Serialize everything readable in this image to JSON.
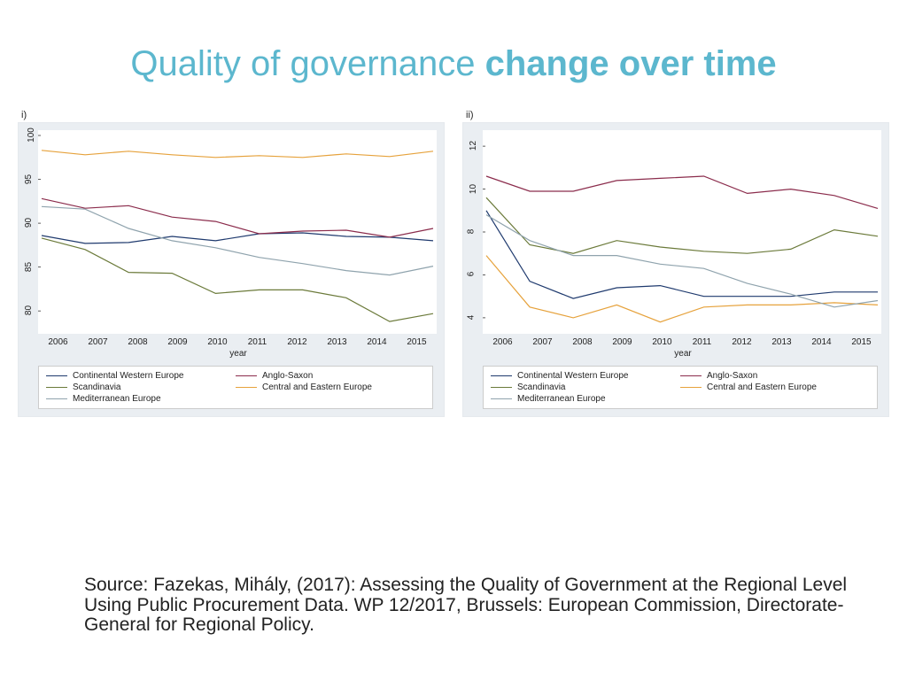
{
  "title_light": "Quality of governance ",
  "title_bold": "change over time",
  "title_color": "#5cb7ce",
  "x_label": "year",
  "years": [
    "2006",
    "2007",
    "2008",
    "2009",
    "2010",
    "2011",
    "2012",
    "2013",
    "2014",
    "2015"
  ],
  "chart_bg": "#eaeef2",
  "plot_bg": "#ffffff",
  "legend_border": "#cccccc",
  "series_meta": {
    "cwe": {
      "label": "Continental Western Europe",
      "color": "#1f3a6e"
    },
    "anglo": {
      "label": "Anglo-Saxon",
      "color": "#8b2c4c"
    },
    "scand": {
      "label": "Scandinavia",
      "color": "#6b7a3a"
    },
    "cee": {
      "label": "Central and Eastern Europe",
      "color": "#e6a23c"
    },
    "med": {
      "label": "Mediterranean Europe",
      "color": "#8fa3ad"
    }
  },
  "legend_rows": [
    [
      "cwe",
      "anglo"
    ],
    [
      "scand",
      "cee"
    ],
    [
      "med"
    ]
  ],
  "charts": [
    {
      "id": "chart-i",
      "panel_label": "i)",
      "type": "line",
      "ylim": [
        78,
        100
      ],
      "yticks": [
        80,
        85,
        90,
        95,
        100
      ],
      "line_width": 1.2,
      "series": {
        "cwe": [
          88.6,
          87.7,
          87.8,
          88.5,
          88.0,
          88.8,
          88.9,
          88.5,
          88.4,
          88.0
        ],
        "anglo": [
          92.8,
          91.7,
          92.0,
          90.7,
          90.2,
          88.8,
          89.1,
          89.2,
          88.4,
          89.4
        ],
        "scand": [
          88.3,
          87.0,
          84.4,
          84.3,
          82.0,
          82.4,
          82.4,
          81.5,
          78.8,
          79.7
        ],
        "cee": [
          98.3,
          97.8,
          98.2,
          97.8,
          97.5,
          97.7,
          97.5,
          97.9,
          97.6,
          98.2
        ],
        "med": [
          91.9,
          91.6,
          89.4,
          88.0,
          87.2,
          86.1,
          85.4,
          84.6,
          84.1,
          85.1
        ]
      }
    },
    {
      "id": "chart-ii",
      "panel_label": "ii)",
      "type": "line",
      "ylim": [
        3.5,
        12.5
      ],
      "yticks": [
        4,
        6,
        8,
        10,
        12
      ],
      "line_width": 1.2,
      "series": {
        "cwe": [
          9.0,
          5.7,
          4.9,
          5.4,
          5.5,
          5.0,
          5.0,
          5.0,
          5.2,
          5.2
        ],
        "anglo": [
          10.6,
          9.9,
          9.9,
          10.4,
          10.5,
          10.6,
          9.8,
          10.0,
          9.7,
          9.1
        ],
        "scand": [
          9.6,
          7.4,
          7.0,
          7.6,
          7.3,
          7.1,
          7.0,
          7.2,
          8.1,
          7.8
        ],
        "cee": [
          6.9,
          4.5,
          4.0,
          4.6,
          3.8,
          4.5,
          4.6,
          4.6,
          4.7,
          4.6
        ],
        "med": [
          8.8,
          7.6,
          6.9,
          6.9,
          6.5,
          6.3,
          5.6,
          5.1,
          4.5,
          4.8
        ]
      }
    }
  ],
  "source_text": "Source: Fazekas, Mihály, (2017): Assessing the Quality of Government at the Regional Level Using Public Procurement Data. WP 12/2017, Brussels: European Commission, Directorate-General for Regional Policy."
}
